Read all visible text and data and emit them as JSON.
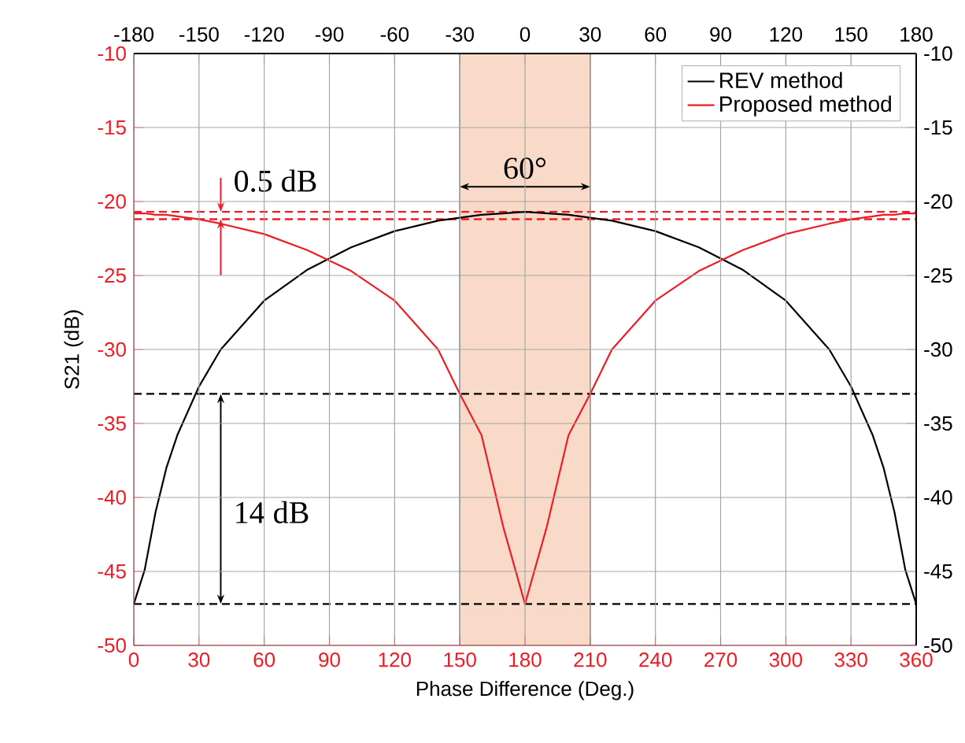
{
  "chart_data": {
    "type": "line",
    "xlabel": "Phase Difference (Deg.)",
    "ylabel": "S21 (dB)",
    "x": [
      0,
      5,
      10,
      15,
      20,
      30,
      40,
      60,
      80,
      100,
      120,
      140,
      150,
      160,
      170,
      180,
      190,
      200,
      210,
      220,
      240,
      260,
      280,
      300,
      320,
      330,
      340,
      345,
      350,
      355,
      360
    ],
    "series": [
      {
        "name": "REV method",
        "color": "#000000",
        "values": [
          -47.2,
          -44.9,
          -41,
          -38,
          -35.8,
          -32.5,
          -30,
          -26.7,
          -24.6,
          -23.1,
          -22,
          -21.3,
          -21.1,
          -20.9,
          -20.8,
          -20.7,
          -20.8,
          -20.9,
          -21.1,
          -21.3,
          -22,
          -23.1,
          -24.6,
          -26.7,
          -30,
          -32.5,
          -35.8,
          -38,
          -41,
          -44.9,
          -47.2
        ]
      },
      {
        "name": "Proposed method",
        "color": "#ee1c25",
        "values": [
          -20.8,
          -20.8,
          -20.9,
          -20.9,
          -21.0,
          -21.2,
          -21.5,
          -22.2,
          -23.3,
          -24.7,
          -26.7,
          -30,
          -33,
          -35.8,
          -42,
          -47.2,
          -42,
          -35.8,
          -33,
          -30,
          -26.7,
          -24.7,
          -23.3,
          -22.2,
          -21.5,
          -21.2,
          -21.0,
          -20.9,
          -20.9,
          -20.8,
          -20.8
        ]
      }
    ],
    "xlim": [
      0,
      360
    ],
    "xticks": [
      0,
      30,
      60,
      90,
      120,
      150,
      180,
      210,
      240,
      270,
      300,
      330,
      360
    ],
    "ylim": [
      -50,
      -10
    ],
    "yticks": [
      -50,
      -45,
      -40,
      -35,
      -30,
      -25,
      -20,
      -15,
      -10
    ],
    "x2lim": [
      -180,
      180
    ],
    "x2ticks": [
      -180,
      -150,
      -120,
      -90,
      -60,
      -30,
      0,
      30,
      60,
      90,
      120,
      150,
      180
    ],
    "y2lim": [
      -50,
      -10
    ],
    "y2ticks": [
      -50,
      -45,
      -40,
      -35,
      -30,
      -25,
      -20,
      -15,
      -10
    ],
    "ref_lines": [
      {
        "axis": "y",
        "value": -20.7,
        "color": "#ee1c25",
        "line_style": "dashed"
      },
      {
        "axis": "y",
        "value": -21.2,
        "color": "#ee1c25",
        "line_style": "dashed"
      },
      {
        "axis": "y",
        "value": -33,
        "color": "#000000",
        "line_style": "dashed"
      },
      {
        "axis": "y",
        "value": -47.2,
        "color": "#000000",
        "line_style": "dashed"
      }
    ],
    "bands": [
      {
        "axis": "x",
        "from": 150,
        "to": 210,
        "color": "#f9dac8"
      }
    ],
    "annotations": [
      "0.5 dB",
      "60°",
      "14 dB"
    ],
    "grid": true,
    "legend": "top right",
    "line_style": "solid",
    "marker": "none"
  }
}
